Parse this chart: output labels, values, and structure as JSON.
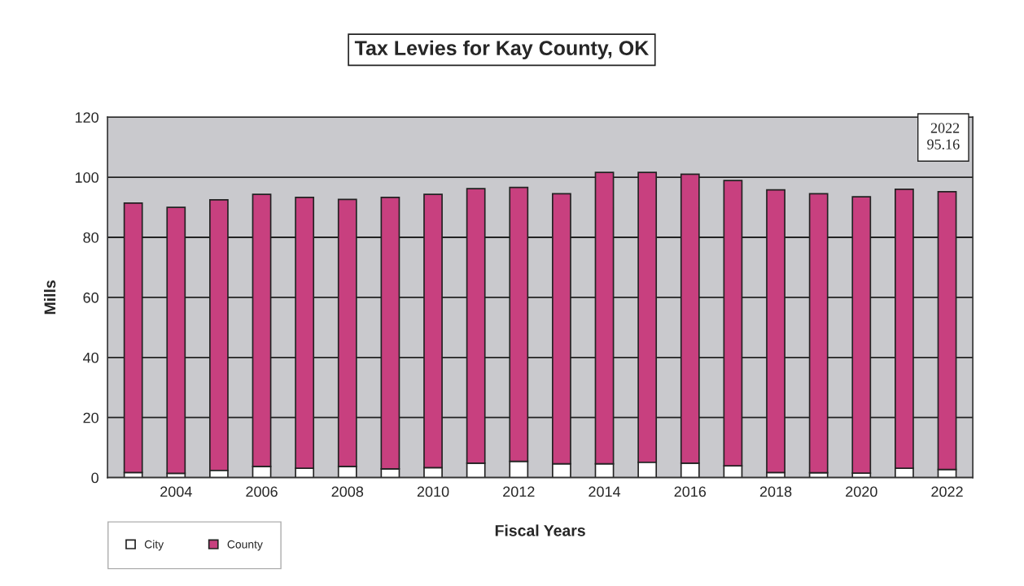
{
  "chart_data": {
    "type": "bar",
    "title": "Tax Levies for Kay County, OK",
    "xlabel": "Fiscal Years",
    "ylabel": "Mills",
    "categories": [
      null,
      "2004",
      null,
      "2006",
      null,
      "2008",
      null,
      "2010",
      null,
      "2012",
      null,
      "2014",
      null,
      "2016",
      null,
      "2018",
      null,
      "2020",
      null,
      "2022"
    ],
    "series": [
      {
        "name": "City",
        "color": "#ffffff",
        "values": [
          1.7,
          1.4,
          2.4,
          3.7,
          3.1,
          3.7,
          2.9,
          3.3,
          4.8,
          5.4,
          4.6,
          4.6,
          5.1,
          4.8,
          3.9,
          1.7,
          1.6,
          1.5,
          3.1,
          2.7
        ]
      },
      {
        "name": "County",
        "color": "#c8407f",
        "values": [
          89.7,
          88.6,
          90.1,
          90.6,
          90.2,
          88.9,
          90.4,
          91.0,
          91.4,
          91.2,
          89.9,
          97.0,
          96.5,
          96.2,
          95.0,
          94.1,
          92.9,
          92.0,
          92.9,
          92.5
        ]
      }
    ],
    "stacked": true,
    "ylim": [
      0,
      120
    ],
    "yticks": [
      0,
      20,
      40,
      60,
      80,
      100,
      120
    ],
    "grid": "y",
    "legend": "bottom left",
    "annotations": [
      "2022\n95.16"
    ]
  }
}
